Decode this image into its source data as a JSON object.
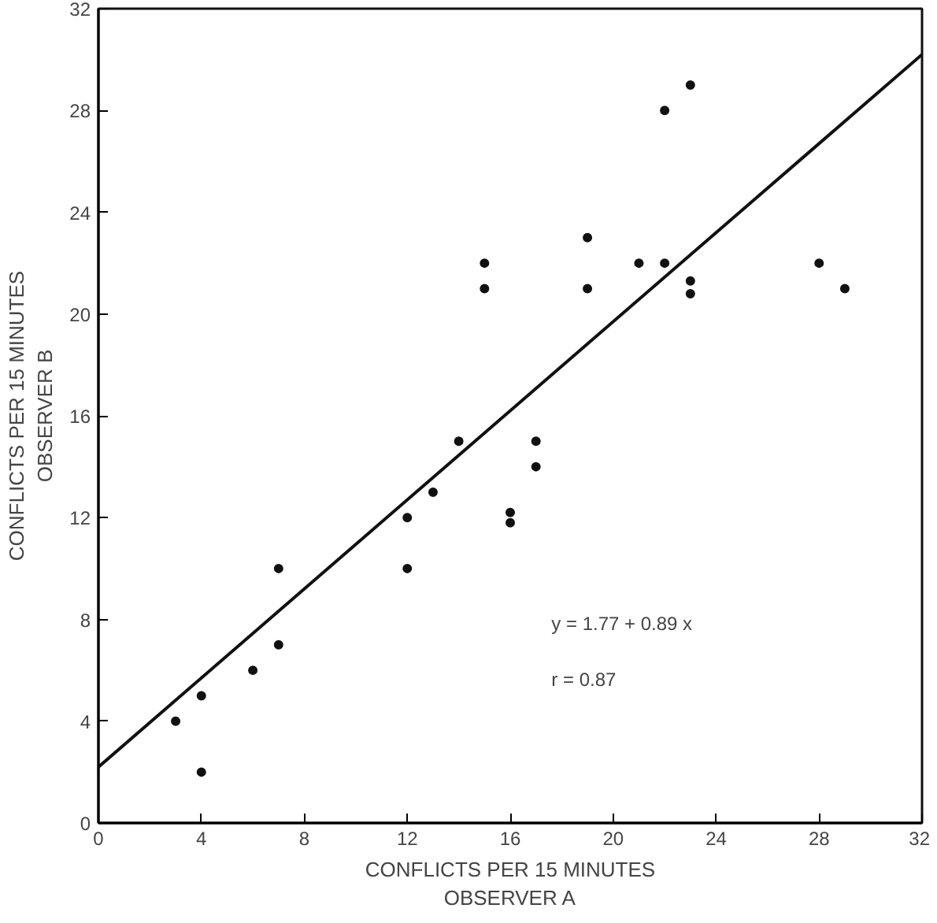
{
  "chart_data": {
    "type": "scatter",
    "xlabel": "CONFLICTS PER 15 MINUTES\nOBSERVER A",
    "ylabel": "CONFLICTS PER 15 MINUTES\nOBSERVER B",
    "x": [
      3,
      4,
      4,
      6,
      7,
      7,
      12,
      12,
      13,
      14,
      15,
      15,
      16,
      16,
      17,
      17,
      19,
      19,
      21,
      22,
      22,
      23,
      23,
      23,
      28,
      29
    ],
    "series": [
      {
        "marker": "circle",
        "color": "#111111",
        "values": [
          4,
          5,
          2,
          6,
          10,
          7,
          12,
          10,
          13,
          15,
          22,
          21,
          12.2,
          11.8,
          15,
          14,
          23,
          21,
          22,
          28,
          22,
          29,
          21.3,
          20.8,
          22,
          21
        ]
      },
      {
        "type": "line",
        "color": "#111111",
        "x": [
          0,
          32
        ],
        "values": [
          2.2,
          30.2
        ]
      }
    ],
    "annotations": [
      "y = 1.77 + 0.89 x",
      "r = 0.87"
    ],
    "xlim": [
      0,
      32
    ],
    "ylim": [
      0,
      32
    ],
    "xticks": [
      0,
      4,
      8,
      12,
      16,
      20,
      24,
      28,
      32
    ],
    "yticks": [
      0,
      4,
      8,
      12,
      16,
      20,
      24,
      28,
      32
    ],
    "grid": false,
    "line_style": "solid"
  }
}
